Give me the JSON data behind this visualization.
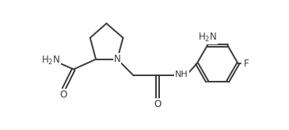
{
  "bg_color": "#ffffff",
  "line_color": "#3a3a3a",
  "text_color": "#3a3a3a",
  "line_width": 1.4,
  "font_size": 8.5,
  "figsize": [
    3.65,
    1.64
  ],
  "dpi": 100,
  "xlim": [
    0,
    10
  ],
  "ylim": [
    0,
    4.5
  ]
}
